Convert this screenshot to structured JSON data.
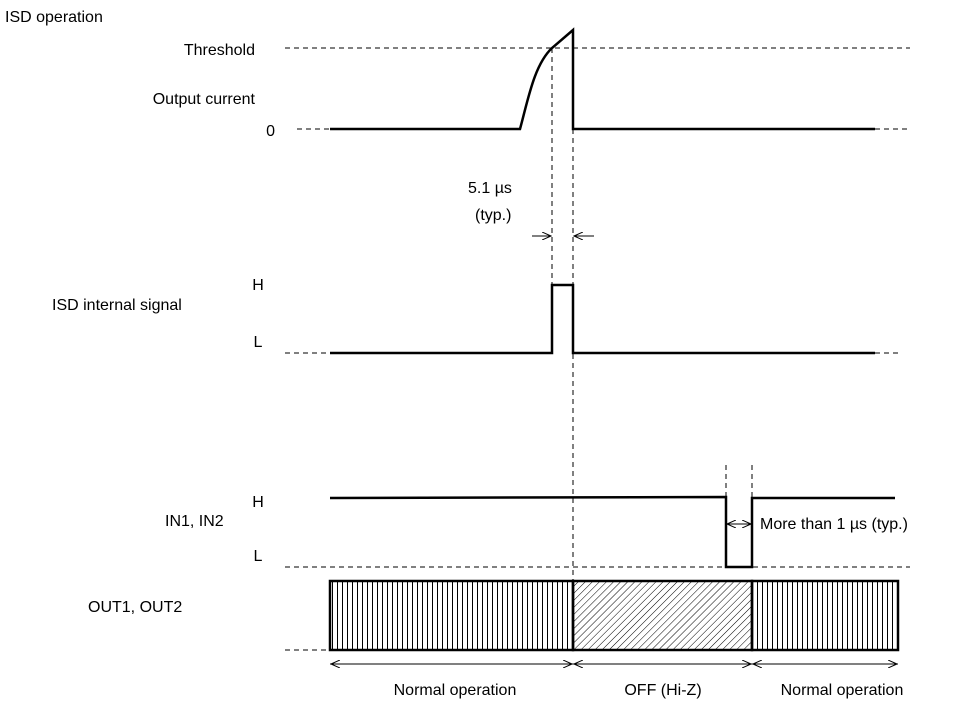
{
  "title": "ISD operation",
  "signals": {
    "output_current": {
      "label": "Output current",
      "threshold_label": "Threshold",
      "zero_label": "0"
    },
    "isd_internal": {
      "label": "ISD internal signal",
      "high_label": "H",
      "low_label": "L"
    },
    "inputs": {
      "label": "IN1, IN2",
      "high_label": "H",
      "low_label": "L"
    },
    "outputs": {
      "label": "OUT1, OUT2"
    }
  },
  "annotations": {
    "delay_value": "5.1 µs",
    "delay_typ": "(typ.)",
    "min_pulse": "More than 1 µs (typ.)"
  },
  "states": [
    {
      "label": "Normal operation"
    },
    {
      "label": "OFF (Hi-Z)"
    },
    {
      "label": "Normal operation"
    }
  ]
}
